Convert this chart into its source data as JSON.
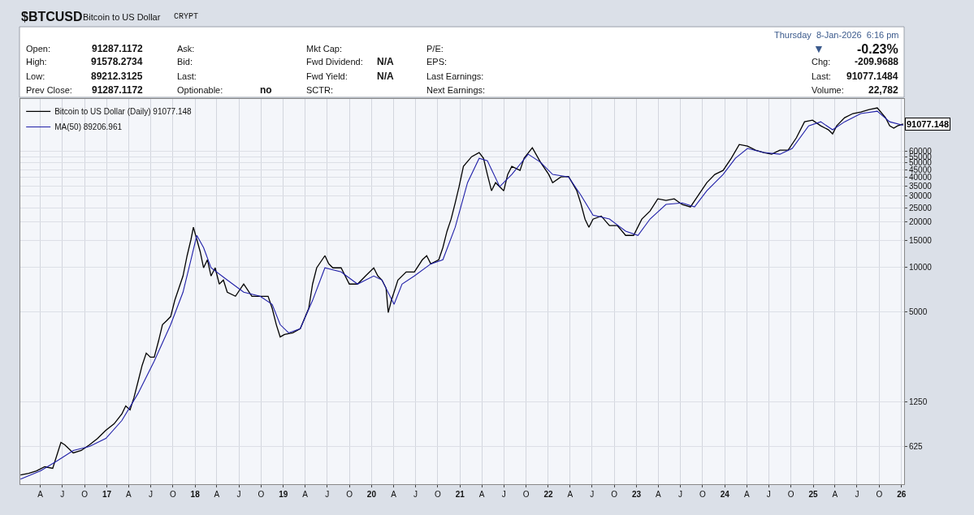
{
  "chart_data": {
    "type": "line",
    "title": "$BTCUSD",
    "subtitle": "Bitcoin to US Dollar",
    "log": true,
    "grid": true,
    "legend": "top left",
    "marker": "none",
    "line_style": "solid",
    "xlim": [
      "2016-01-09",
      "2026-01-12"
    ],
    "xticks": [
      {
        "value": "2016-04-01",
        "label": "A"
      },
      {
        "value": "2016-07-01",
        "label": "J"
      },
      {
        "value": "2016-10-01",
        "label": "O"
      },
      {
        "value": "2017-01-01",
        "label": "17"
      },
      {
        "value": "2017-04-01",
        "label": "A"
      },
      {
        "value": "2017-07-01",
        "label": "J"
      },
      {
        "value": "2017-10-01",
        "label": "O"
      },
      {
        "value": "2018-01-01",
        "label": "18"
      },
      {
        "value": "2018-04-01",
        "label": "A"
      },
      {
        "value": "2018-07-01",
        "label": "J"
      },
      {
        "value": "2018-10-01",
        "label": "O"
      },
      {
        "value": "2019-01-01",
        "label": "19"
      },
      {
        "value": "2019-04-01",
        "label": "A"
      },
      {
        "value": "2019-07-01",
        "label": "J"
      },
      {
        "value": "2019-10-01",
        "label": "O"
      },
      {
        "value": "2020-01-01",
        "label": "20"
      },
      {
        "value": "2020-04-01",
        "label": "A"
      },
      {
        "value": "2020-07-01",
        "label": "J"
      },
      {
        "value": "2020-10-01",
        "label": "O"
      },
      {
        "value": "2021-01-01",
        "label": "21"
      },
      {
        "value": "2021-04-01",
        "label": "A"
      },
      {
        "value": "2021-07-01",
        "label": "J"
      },
      {
        "value": "2021-10-01",
        "label": "O"
      },
      {
        "value": "2022-01-01",
        "label": "22"
      },
      {
        "value": "2022-04-01",
        "label": "A"
      },
      {
        "value": "2022-07-01",
        "label": "J"
      },
      {
        "value": "2022-10-01",
        "label": "O"
      },
      {
        "value": "2023-01-01",
        "label": "23"
      },
      {
        "value": "2023-04-01",
        "label": "A"
      },
      {
        "value": "2023-07-01",
        "label": "J"
      },
      {
        "value": "2023-10-01",
        "label": "O"
      },
      {
        "value": "2024-01-01",
        "label": "24"
      },
      {
        "value": "2024-04-01",
        "label": "A"
      },
      {
        "value": "2024-07-01",
        "label": "J"
      },
      {
        "value": "2024-10-01",
        "label": "O"
      },
      {
        "value": "2025-01-01",
        "label": "25"
      },
      {
        "value": "2025-04-01",
        "label": "A"
      },
      {
        "value": "2025-07-01",
        "label": "J"
      },
      {
        "value": "2025-10-01",
        "label": "O"
      },
      {
        "value": "2026-01-01",
        "label": "26"
      }
    ],
    "ylim": [
      350,
      134000
    ],
    "yticks": [
      625,
      1250,
      5000,
      10000,
      15000,
      20000,
      25000,
      30000,
      35000,
      40000,
      45000,
      50000,
      55000,
      60000
    ],
    "series": [
      {
        "name": "Bitcoin to US Dollar (Daily) 91077.148",
        "color": "#000000",
        "x": [
          "2016-01-10",
          "2016-02-13",
          "2016-03-16",
          "2016-04-19",
          "2016-05-22",
          "2016-06-25",
          "2016-07-11",
          "2016-08-15",
          "2016-09-17",
          "2016-10-21",
          "2016-11-24",
          "2016-12-28",
          "2017-01-31",
          "2017-03-04",
          "2017-03-20",
          "2017-04-07",
          "2017-04-23",
          "2017-05-10",
          "2017-05-27",
          "2017-06-13",
          "2017-06-30",
          "2017-07-16",
          "2017-08-03",
          "2017-08-19",
          "2017-09-06",
          "2017-09-22",
          "2017-10-09",
          "2017-10-26",
          "2017-11-12",
          "2017-11-29",
          "2017-12-15",
          "2017-12-25",
          "2018-01-08",
          "2018-01-22",
          "2018-02-05",
          "2018-02-21",
          "2018-03-08",
          "2018-03-25",
          "2018-04-11",
          "2018-04-28",
          "2018-05-14",
          "2018-06-17",
          "2018-07-21",
          "2018-08-24",
          "2018-09-27",
          "2018-10-30",
          "2018-11-16",
          "2018-12-03",
          "2018-12-19",
          "2019-01-06",
          "2019-02-09",
          "2019-03-12",
          "2019-04-16",
          "2019-05-02",
          "2019-05-19",
          "2019-06-22",
          "2019-07-08",
          "2019-07-25",
          "2019-08-28",
          "2019-10-01",
          "2019-11-04",
          "2019-12-07",
          "2020-01-10",
          "2020-01-27",
          "2020-02-13",
          "2020-03-01",
          "2020-03-10",
          "2020-03-23",
          "2020-04-19",
          "2020-05-23",
          "2020-06-26",
          "2020-07-29",
          "2020-08-16",
          "2020-09-02",
          "2020-10-05",
          "2020-10-22",
          "2020-11-08",
          "2020-11-25",
          "2020-12-12",
          "2020-12-28",
          "2021-01-15",
          "2021-02-18",
          "2021-03-21",
          "2021-04-08",
          "2021-04-24",
          "2021-05-11",
          "2021-05-28",
          "2021-07-01",
          "2021-07-17",
          "2021-08-03",
          "2021-09-06",
          "2021-09-23",
          "2021-10-27",
          "2021-11-30",
          "2022-01-03",
          "2022-01-19",
          "2022-02-22",
          "2022-03-26",
          "2022-04-29",
          "2022-05-15",
          "2022-06-02",
          "2022-06-18",
          "2022-07-05",
          "2022-08-08",
          "2022-09-11",
          "2022-10-14",
          "2022-11-17",
          "2022-12-20",
          "2023-01-23",
          "2023-02-26",
          "2023-03-30",
          "2023-05-03",
          "2023-06-06",
          "2023-07-09",
          "2023-08-12",
          "2023-09-15",
          "2023-10-19",
          "2023-11-21",
          "2023-12-25",
          "2024-01-28",
          "2024-03-01",
          "2024-04-04",
          "2024-05-07",
          "2024-06-10",
          "2024-07-13",
          "2024-08-16",
          "2024-09-19",
          "2024-10-23",
          "2024-11-26",
          "2024-12-29",
          "2025-02-01",
          "2025-03-05",
          "2025-03-22",
          "2025-04-08",
          "2025-05-11",
          "2025-06-14",
          "2025-07-17",
          "2025-08-20",
          "2025-09-23",
          "2025-10-27",
          "2025-11-13",
          "2025-11-30",
          "2025-12-16",
          "2026-01-08"
        ],
        "values": [
          404,
          414,
          430,
          458,
          447,
          667,
          643,
          567,
          589,
          643,
          710,
          805,
          889,
          1035,
          1172,
          1102,
          1330,
          1706,
          2193,
          2649,
          2488,
          2488,
          3199,
          4105,
          4375,
          4656,
          5984,
          7216,
          8710,
          11920,
          15310,
          18490,
          15310,
          12690,
          9880,
          11190,
          8710,
          9880,
          7690,
          8180,
          6780,
          6370,
          7690,
          6370,
          6370,
          6370,
          5280,
          4105,
          3400,
          3530,
          3620,
          3860,
          5280,
          7690,
          9880,
          11920,
          10510,
          9880,
          9880,
          7690,
          7690,
          8710,
          9880,
          8710,
          8180,
          7216,
          4955,
          5984,
          8180,
          9270,
          9270,
          11190,
          11920,
          10510,
          11190,
          13510,
          17370,
          20960,
          26920,
          34590,
          47320,
          54970,
          58580,
          53620,
          41760,
          32480,
          36820,
          32480,
          41760,
          47320,
          44430,
          53620,
          63120,
          50370,
          41760,
          36820,
          40180,
          40440,
          32480,
          26920,
          20960,
          18490,
          20960,
          21960,
          18950,
          18950,
          16300,
          16300,
          20960,
          23750,
          28660,
          27940,
          28660,
          26260,
          25290,
          30520,
          36820,
          41760,
          44430,
          53620,
          66370,
          64740,
          60810,
          58580,
          57120,
          60810,
          60810,
          73450,
          94240,
          96620,
          88520,
          83180,
          78150,
          88520,
          100400,
          106900,
          109600,
          113800,
          116700,
          100400,
          88520,
          85310,
          88520,
          91077.148
        ]
      },
      {
        "name": "MA(50) 89206.961",
        "color": "#1f1fa8",
        "x": [
          "2016-01-10",
          "2016-04-02",
          "2016-06-08",
          "2016-08-15",
          "2016-10-21",
          "2016-12-28",
          "2017-03-04",
          "2017-05-10",
          "2017-07-16",
          "2017-09-22",
          "2017-11-12",
          "2017-12-15",
          "2018-01-08",
          "2018-02-05",
          "2018-03-08",
          "2018-05-14",
          "2018-07-21",
          "2018-09-27",
          "2018-11-16",
          "2018-12-19",
          "2019-01-23",
          "2019-03-12",
          "2019-05-02",
          "2019-06-22",
          "2019-08-28",
          "2019-11-04",
          "2020-01-10",
          "2020-02-13",
          "2020-04-03",
          "2020-05-06",
          "2020-06-26",
          "2020-09-02",
          "2020-10-22",
          "2020-12-12",
          "2021-02-01",
          "2021-03-21",
          "2021-04-24",
          "2021-06-14",
          "2021-08-03",
          "2021-10-10",
          "2021-11-30",
          "2022-01-19",
          "2022-03-26",
          "2022-05-15",
          "2022-07-05",
          "2022-09-11",
          "2022-11-17",
          "2023-01-07",
          "2023-02-26",
          "2023-05-03",
          "2023-07-09",
          "2023-08-29",
          "2023-10-19",
          "2023-12-25",
          "2024-02-14",
          "2024-04-04",
          "2024-06-10",
          "2024-08-16",
          "2024-10-06",
          "2024-12-13",
          "2025-02-01",
          "2025-03-22",
          "2025-05-11",
          "2025-07-17",
          "2025-09-23",
          "2025-11-13",
          "2026-01-08"
        ],
        "values": [
          379,
          430,
          500,
          589,
          627,
          710,
          935,
          1420,
          2340,
          4110,
          6780,
          11200,
          16300,
          13500,
          9880,
          8180,
          6780,
          6370,
          5620,
          4110,
          3620,
          3860,
          5980,
          9880,
          9270,
          7690,
          8710,
          8180,
          5620,
          7690,
          8710,
          10500,
          11200,
          18500,
          36800,
          53600,
          51600,
          34600,
          41800,
          57100,
          50400,
          41800,
          40200,
          30500,
          22300,
          21000,
          17400,
          16300,
          21000,
          26300,
          26900,
          25300,
          32500,
          41800,
          53600,
          62400,
          58600,
          57100,
          62400,
          88500,
          94200,
          83200,
          94200,
          106900,
          110900,
          94200,
          89206.961
        ]
      }
    ],
    "annotations": [
      "CRYPT",
      "Open:",
      "91287.1172",
      "High:",
      "91578.2734",
      "Low:",
      "89212.3125",
      "Prev Close:",
      "91287.1172",
      "Ask:",
      "Bid:",
      "Last:",
      "Optionable:",
      "no",
      "Mkt Cap:",
      "Fwd Dividend:",
      "N/A",
      "Fwd Yield:",
      "N/A",
      "SCTR:",
      "P/E:",
      "EPS:",
      "Last Earnings:",
      "Next Earnings:",
      "Thursday  8-Jan-2026  6:16 pm",
      "▼",
      "-0.23%",
      "Chg:",
      "-209.9688",
      "Last:",
      "91077.1484",
      "Volume:",
      "22,782",
      {
        "text": "91077.148",
        "x": "2026-01-08",
        "y": 91077.148
      }
    ]
  }
}
